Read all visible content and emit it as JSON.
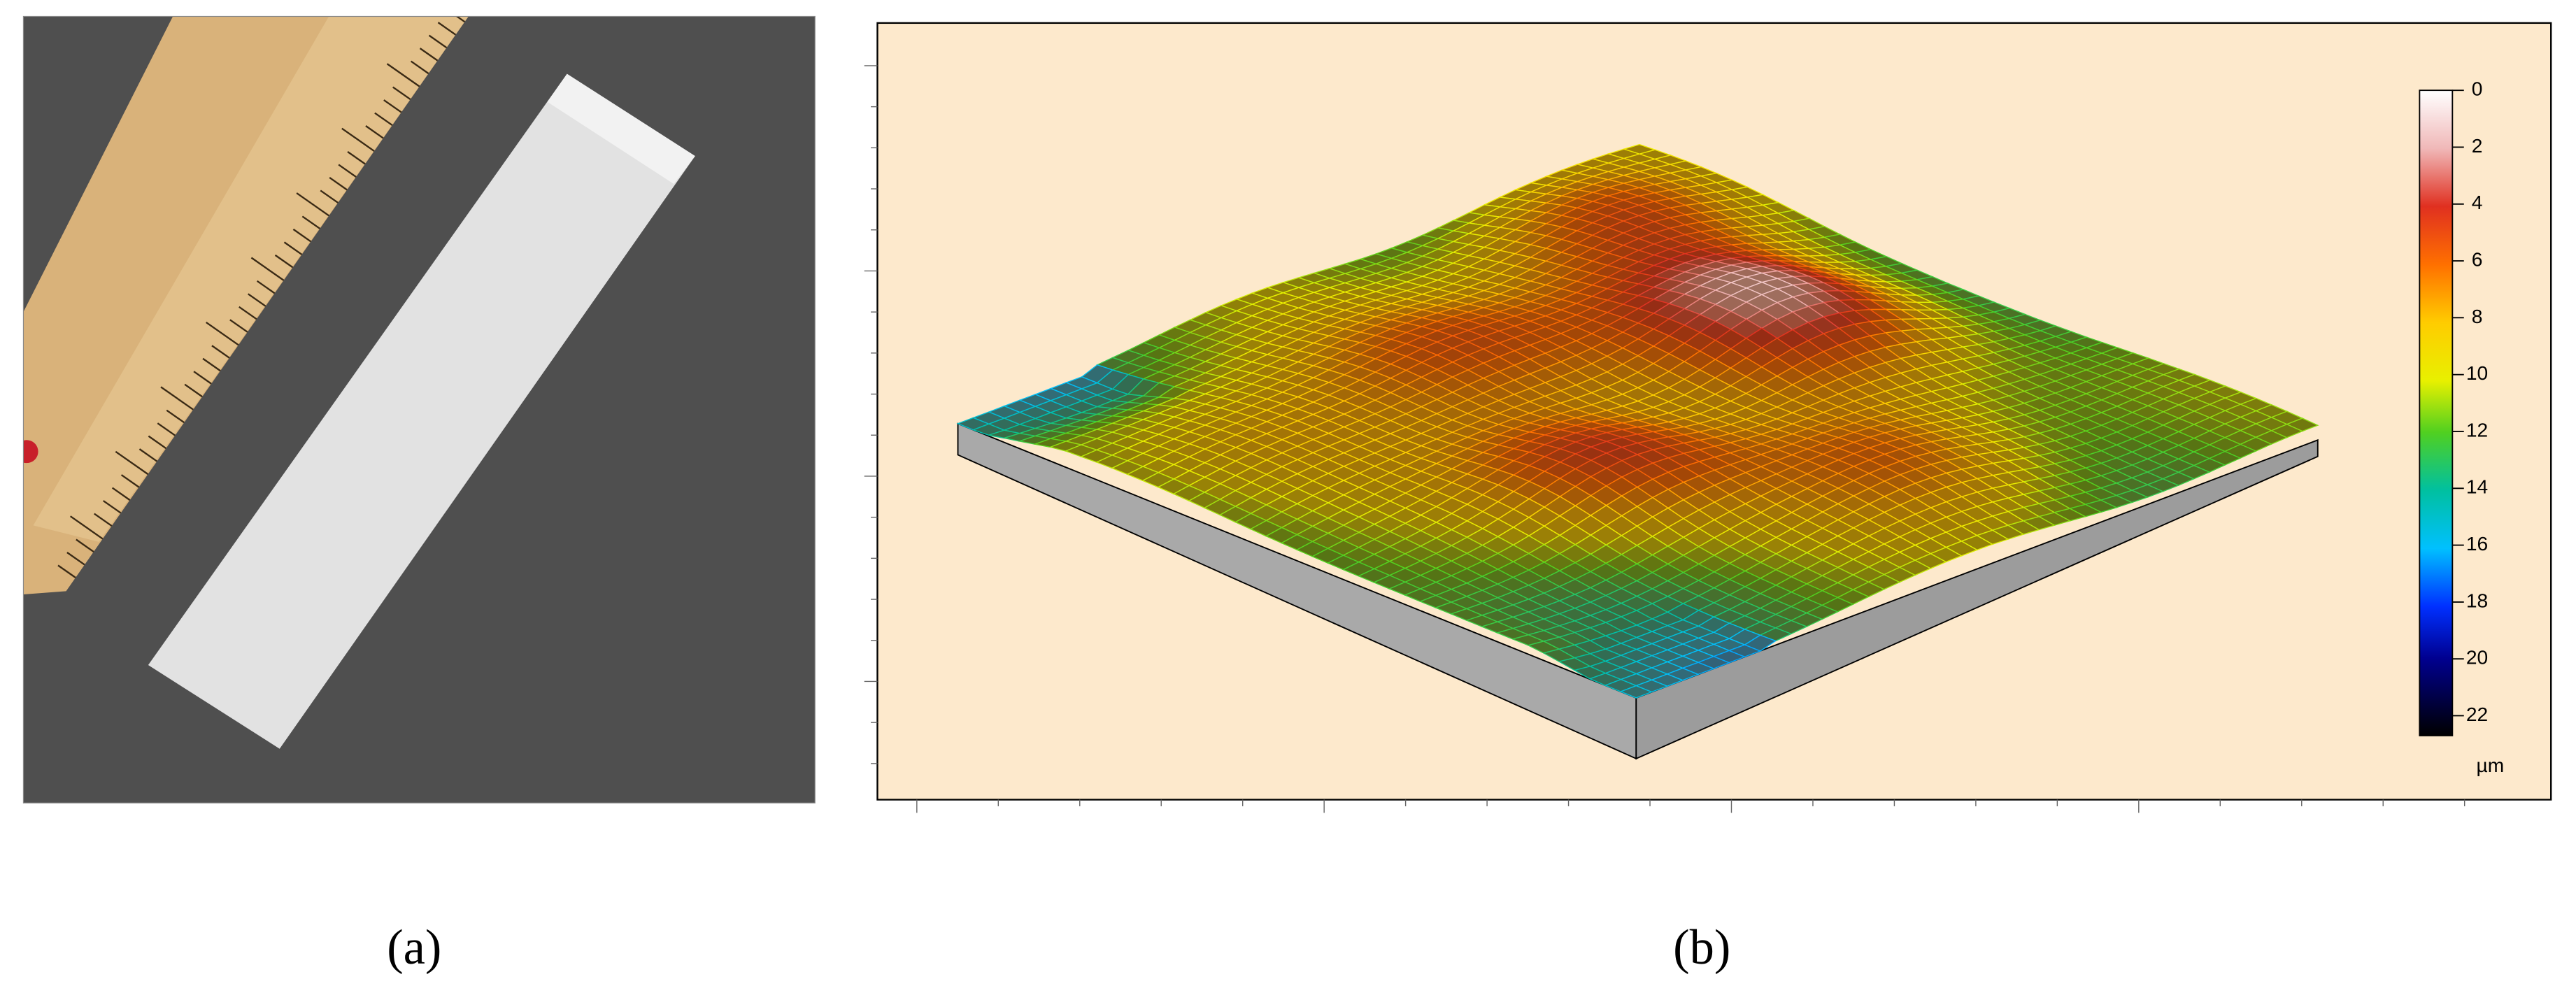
{
  "panels": [
    {
      "label": "(a)"
    },
    {
      "label": "(b)",
      "colorbar": {
        "lim": [
          0,
          22.7
        ],
        "ticks": [
          0,
          2,
          4,
          6,
          8,
          10,
          12,
          14,
          16,
          18,
          20,
          22
        ],
        "unit": "µm"
      }
    }
  ]
}
